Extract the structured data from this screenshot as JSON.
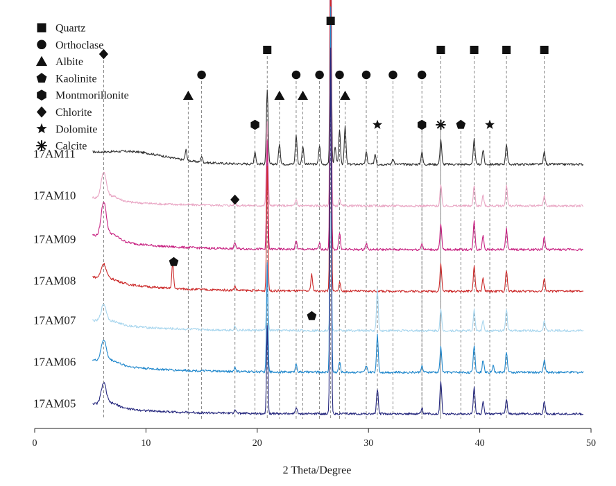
{
  "chart_data": {
    "type": "line",
    "subtype": "x-ray-diffraction-pattern",
    "xlabel": "2 Theta/Degree",
    "ylabel": "",
    "xlim": [
      0,
      50
    ],
    "xticks": [
      0,
      10,
      20,
      30,
      40,
      50
    ],
    "ylim": [
      0,
      100
    ],
    "yaxis_visible": false,
    "grid": false,
    "legend_position": "top-left",
    "legend": [
      {
        "marker": "square",
        "label": "Quartz"
      },
      {
        "marker": "circle",
        "label": "Orthoclase"
      },
      {
        "marker": "triangle",
        "label": "Albite"
      },
      {
        "marker": "pentagon",
        "label": "Kaolinite"
      },
      {
        "marker": "hexagon",
        "label": "Montmorillonite"
      },
      {
        "marker": "diamond",
        "label": "Chlorite"
      },
      {
        "marker": "star",
        "label": "Dolomite"
      },
      {
        "marker": "asterisk",
        "label": "Calcite"
      }
    ],
    "reference_lines": [
      {
        "x": 6.2,
        "marker": "diamond",
        "marker_y": 90
      },
      {
        "x": 13.8,
        "marker": "triangle",
        "marker_y": 80
      },
      {
        "x": 15.0,
        "marker": "circle",
        "marker_y": 85
      },
      {
        "x": 18.0,
        "marker": "diamond",
        "marker_y": 55
      },
      {
        "x": 19.8,
        "marker": "hexagon",
        "marker_y": 73
      },
      {
        "x": 20.9,
        "marker": "square",
        "marker_y": 91
      },
      {
        "x": 22.0,
        "marker": "triangle",
        "marker_y": 80
      },
      {
        "x": 23.5,
        "marker": "circle",
        "marker_y": 85
      },
      {
        "x": 24.1,
        "marker": "triangle",
        "marker_y": 80
      },
      {
        "x": 25.6,
        "marker": "circle",
        "marker_y": 85
      },
      {
        "x": 26.6,
        "marker": "square",
        "marker_y": 98
      },
      {
        "x": 27.4,
        "marker": "circle",
        "marker_y": 85
      },
      {
        "x": 27.9,
        "marker": "triangle",
        "marker_y": 80
      },
      {
        "x": 29.8,
        "marker": "circle",
        "marker_y": 85
      },
      {
        "x": 30.8,
        "marker": "star",
        "marker_y": 73
      },
      {
        "x": 32.2,
        "marker": "circle",
        "marker_y": 85
      },
      {
        "x": 34.8,
        "marker": "circle",
        "marker_y": 85
      },
      {
        "x": 34.8,
        "marker": "hexagon",
        "marker_y": 73
      },
      {
        "x": 36.5,
        "marker": "square",
        "marker_y": 91
      },
      {
        "x": 36.5,
        "marker": "asterisk",
        "marker_y": 73
      },
      {
        "x": 38.3,
        "marker": "pentagon",
        "marker_y": 73
      },
      {
        "x": 39.5,
        "marker": "square",
        "marker_y": 91
      },
      {
        "x": 40.9,
        "marker": "star",
        "marker_y": 73
      },
      {
        "x": 42.4,
        "marker": "square",
        "marker_y": 91
      },
      {
        "x": 45.8,
        "marker": "square",
        "marker_y": 91
      }
    ],
    "standalone_markers": [
      {
        "x": 12.5,
        "marker": "pentagon",
        "marker_y": 40
      },
      {
        "x": 24.9,
        "marker": "pentagon",
        "marker_y": 27
      }
    ],
    "series": [
      {
        "name": "17AM11",
        "color": "#333333",
        "baseline": 63.5,
        "start_y": 65.5,
        "clay": 0,
        "peaks": [
          [
            13.6,
            2.5
          ],
          [
            15.0,
            1.5
          ],
          [
            19.8,
            3
          ],
          [
            20.9,
            18
          ],
          [
            22.0,
            5
          ],
          [
            23.5,
            7
          ],
          [
            24.1,
            4.5
          ],
          [
            25.6,
            4.5
          ],
          [
            26.6,
            60
          ],
          [
            27.0,
            4
          ],
          [
            27.4,
            8
          ],
          [
            27.9,
            9
          ],
          [
            29.8,
            3
          ],
          [
            30.6,
            2.5
          ],
          [
            32.2,
            1.5
          ],
          [
            34.8,
            3
          ],
          [
            36.5,
            6
          ],
          [
            39.5,
            6
          ],
          [
            40.3,
            3.5
          ],
          [
            42.4,
            5
          ],
          [
            45.8,
            3
          ]
        ]
      },
      {
        "name": "17AM10",
        "color": "#e9a6c4",
        "baseline": 53.5,
        "start_y": 55.5,
        "clay": 6,
        "peaks": [
          [
            18.0,
            1
          ],
          [
            20.9,
            20
          ],
          [
            23.5,
            1.5
          ],
          [
            26.6,
            68
          ],
          [
            27.4,
            1.5
          ],
          [
            36.5,
            5
          ],
          [
            39.5,
            5
          ],
          [
            40.3,
            2.5
          ],
          [
            42.4,
            5
          ],
          [
            45.8,
            2.5
          ]
        ]
      },
      {
        "name": "17AM09",
        "color": "#c72080",
        "baseline": 43,
        "start_y": 46.5,
        "clay": 8,
        "peaks": [
          [
            18.0,
            1.5
          ],
          [
            20.9,
            26
          ],
          [
            23.5,
            2
          ],
          [
            25.6,
            1.5
          ],
          [
            26.6,
            78
          ],
          [
            27.4,
            4
          ],
          [
            29.8,
            1.5
          ],
          [
            34.8,
            1.5
          ],
          [
            36.5,
            6
          ],
          [
            39.5,
            7
          ],
          [
            40.3,
            3.5
          ],
          [
            42.4,
            5
          ],
          [
            45.8,
            3
          ]
        ]
      },
      {
        "name": "17AM08",
        "color": "#cc2a2a",
        "baseline": 33,
        "start_y": 36.5,
        "clay": 3.5,
        "peaks": [
          [
            12.4,
            6
          ],
          [
            18.0,
            1
          ],
          [
            20.9,
            30
          ],
          [
            24.9,
            4
          ],
          [
            26.6,
            82
          ],
          [
            27.4,
            2
          ],
          [
            36.5,
            6.5
          ],
          [
            39.5,
            6
          ],
          [
            40.3,
            3
          ],
          [
            42.4,
            5
          ],
          [
            45.8,
            3
          ]
        ]
      },
      {
        "name": "17AM07",
        "color": "#a8d6ee",
        "baseline": 23.5,
        "start_y": 26,
        "clay": 4,
        "peaks": [
          [
            18.0,
            1
          ],
          [
            20.9,
            8
          ],
          [
            26.6,
            28
          ],
          [
            30.8,
            10
          ],
          [
            36.5,
            5
          ],
          [
            39.5,
            5
          ],
          [
            40.3,
            2.5
          ],
          [
            42.4,
            5
          ],
          [
            45.8,
            2.5
          ]
        ]
      },
      {
        "name": "17AM06",
        "color": "#1f87cc",
        "baseline": 13.5,
        "start_y": 16.5,
        "clay": 5,
        "peaks": [
          [
            18.0,
            1
          ],
          [
            20.9,
            26
          ],
          [
            23.5,
            2
          ],
          [
            26.6,
            88
          ],
          [
            27.4,
            2.5
          ],
          [
            29.8,
            1.5
          ],
          [
            30.8,
            9
          ],
          [
            34.8,
            1.5
          ],
          [
            36.5,
            6
          ],
          [
            39.5,
            6.5
          ],
          [
            40.3,
            3
          ],
          [
            41.2,
            1.5
          ],
          [
            42.4,
            5
          ],
          [
            45.8,
            3
          ]
        ]
      },
      {
        "name": "17AM05",
        "color": "#25277d",
        "baseline": 3.5,
        "start_y": 6,
        "clay": 5,
        "peaks": [
          [
            18.0,
            1
          ],
          [
            20.9,
            21
          ],
          [
            23.5,
            1.5
          ],
          [
            26.6,
            88
          ],
          [
            30.8,
            6
          ],
          [
            34.8,
            1.5
          ],
          [
            36.5,
            8
          ],
          [
            39.5,
            6.5
          ],
          [
            40.3,
            3
          ],
          [
            42.4,
            3.5
          ],
          [
            45.8,
            3
          ]
        ]
      }
    ]
  }
}
